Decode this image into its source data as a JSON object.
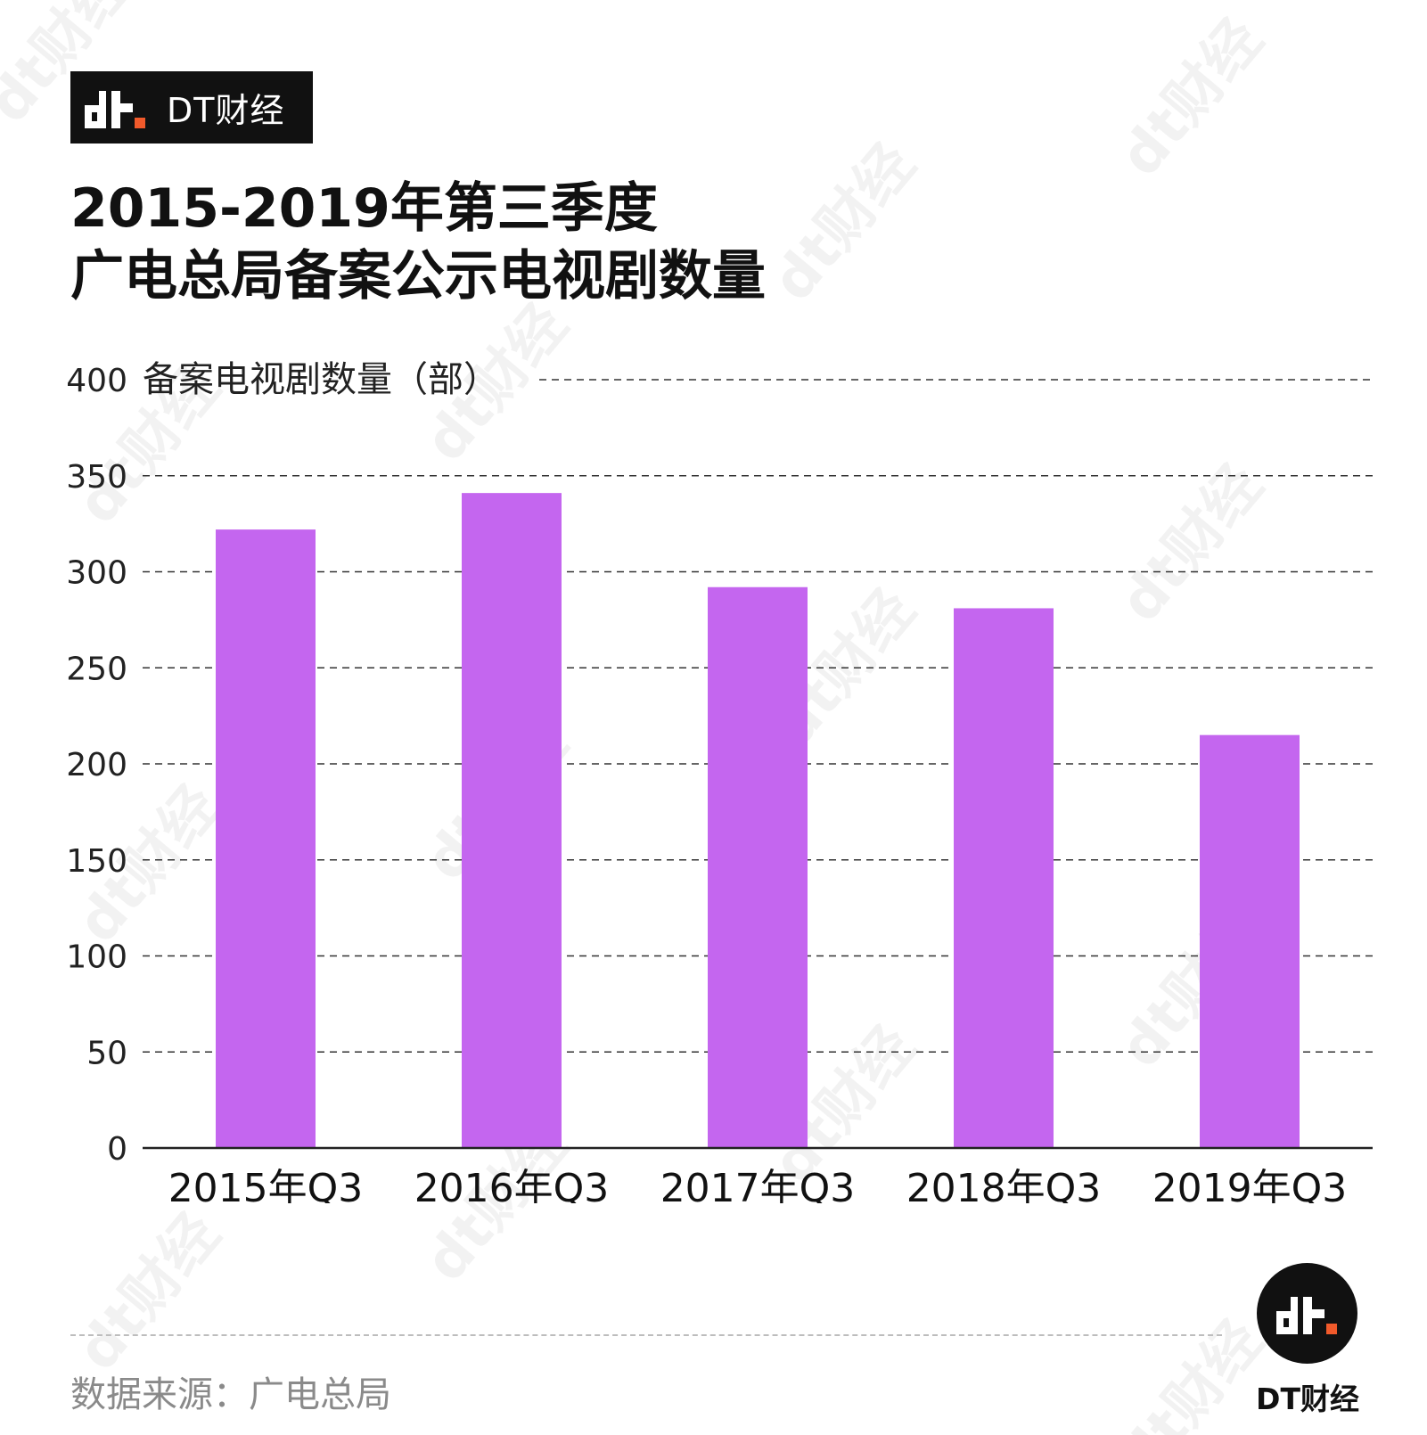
{
  "brand": {
    "name": "DT财经",
    "mark_text": "dt",
    "accent_color": "#f15a2b"
  },
  "title": {
    "line1": "2015-2019年第三季度",
    "line2": "广电总局备案公示电视剧数量"
  },
  "chart_data": {
    "type": "bar",
    "title": "2015-2019年第三季度 广电总局备案公示电视剧数量",
    "ylabel": "备案电视剧数量（部）",
    "xlabel": "",
    "categories": [
      "2015年Q3",
      "2016年Q3",
      "2017年Q3",
      "2018年Q3",
      "2019年Q3"
    ],
    "values": [
      322,
      341,
      292,
      281,
      215
    ],
    "ylim": [
      0,
      400
    ],
    "yticks": [
      0,
      50,
      100,
      150,
      200,
      250,
      300,
      350,
      400
    ],
    "grid": "dashed horizontal",
    "bar_color": "#c466ef"
  },
  "footer": {
    "source": "数据来源：广电总局",
    "logo_label": "DT财经"
  },
  "watermark": {
    "text": "dt财经"
  }
}
